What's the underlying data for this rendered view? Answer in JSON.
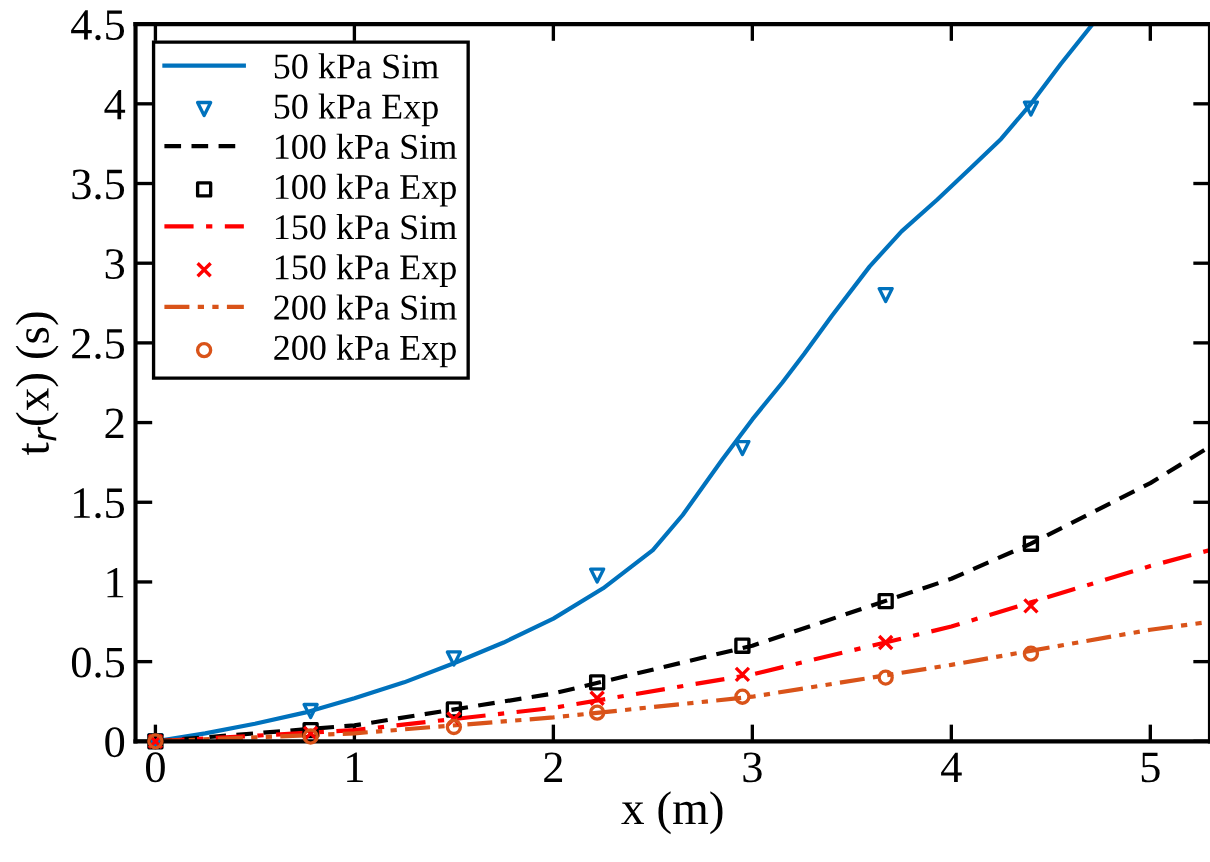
{
  "chart_data": {
    "type": "line",
    "xlabel": "x (m)",
    "ylabel": "t$_{r}$(x) (s)",
    "xlim": [
      -0.1,
      5.3
    ],
    "xticks": [
      0,
      1,
      2,
      3,
      4,
      5
    ],
    "ylim": [
      0,
      4.5
    ],
    "yticks": [
      0,
      0.5,
      1,
      1.5,
      2,
      2.5,
      3,
      3.5,
      4,
      4.5
    ],
    "legend": "top left",
    "grid": false,
    "series": [
      {
        "name": "50 kPa Sim",
        "line_style": "solid",
        "marker": "none",
        "color": "#0072bd",
        "x": [
          0,
          0.25,
          0.5,
          0.75,
          1,
          1.25,
          1.5,
          1.75,
          2,
          2.25,
          2.5,
          2.65,
          2.85,
          3.0,
          3.15,
          3.26,
          3.4,
          3.59,
          3.75,
          3.93,
          4.1,
          4.25,
          4.4,
          4.55,
          4.71
        ],
        "values": [
          0,
          0.05,
          0.11,
          0.18,
          0.27,
          0.37,
          0.49,
          0.62,
          0.77,
          0.96,
          1.2,
          1.42,
          1.77,
          2.02,
          2.25,
          2.43,
          2.67,
          2.98,
          3.2,
          3.4,
          3.6,
          3.78,
          4.0,
          4.25,
          4.5
        ]
      },
      {
        "name": "50 kPa Exp",
        "type": "scatter",
        "marker": "triangle",
        "color": "#0072bd",
        "x": [
          0,
          0.78,
          1.5,
          2.22,
          2.95,
          3.67,
          4.4
        ],
        "values": [
          0,
          0.19,
          0.52,
          1.04,
          1.84,
          2.8,
          3.97
        ]
      },
      {
        "name": "100 kPa Sim",
        "line_style": "dashed",
        "marker": "none",
        "color": "#000000",
        "x": [
          0,
          1,
          2,
          3,
          4,
          4.4,
          5,
          5.3
        ],
        "values": [
          0,
          0.1,
          0.3,
          0.6,
          1.02,
          1.24,
          1.62,
          1.85
        ]
      },
      {
        "name": "100 kPa Exp",
        "type": "scatter",
        "marker": "square",
        "color": "#000000",
        "x": [
          0,
          0.78,
          1.5,
          2.22,
          2.95,
          3.67,
          4.4
        ],
        "values": [
          0,
          0.07,
          0.2,
          0.37,
          0.6,
          0.88,
          1.24
        ]
      },
      {
        "name": "150 kPa Sim",
        "line_style": "dashdot",
        "marker": "none",
        "color": "#ff0000",
        "x": [
          0,
          1,
          2,
          3,
          4,
          5,
          5.3
        ],
        "values": [
          0,
          0.07,
          0.21,
          0.42,
          0.72,
          1.1,
          1.2
        ]
      },
      {
        "name": "150 kPa Exp",
        "type": "scatter",
        "marker": "cross",
        "color": "#ff0000",
        "x": [
          0,
          0.78,
          1.5,
          2.22,
          2.95,
          3.67,
          4.4
        ],
        "values": [
          0,
          0.05,
          0.14,
          0.27,
          0.42,
          0.62,
          0.85
        ]
      },
      {
        "name": "200 kPa Sim",
        "line_style": "dashdotdot",
        "marker": "none",
        "color": "#d95319",
        "x": [
          0,
          1,
          2,
          3,
          4,
          5,
          5.3
        ],
        "values": [
          0,
          0.05,
          0.15,
          0.28,
          0.48,
          0.7,
          0.75
        ]
      },
      {
        "name": "200 kPa Exp",
        "type": "scatter",
        "marker": "circle",
        "color": "#d95319",
        "x": [
          0,
          0.78,
          1.5,
          2.22,
          2.95,
          3.67,
          4.4
        ],
        "values": [
          0,
          0.03,
          0.09,
          0.18,
          0.28,
          0.4,
          0.55
        ]
      }
    ]
  }
}
